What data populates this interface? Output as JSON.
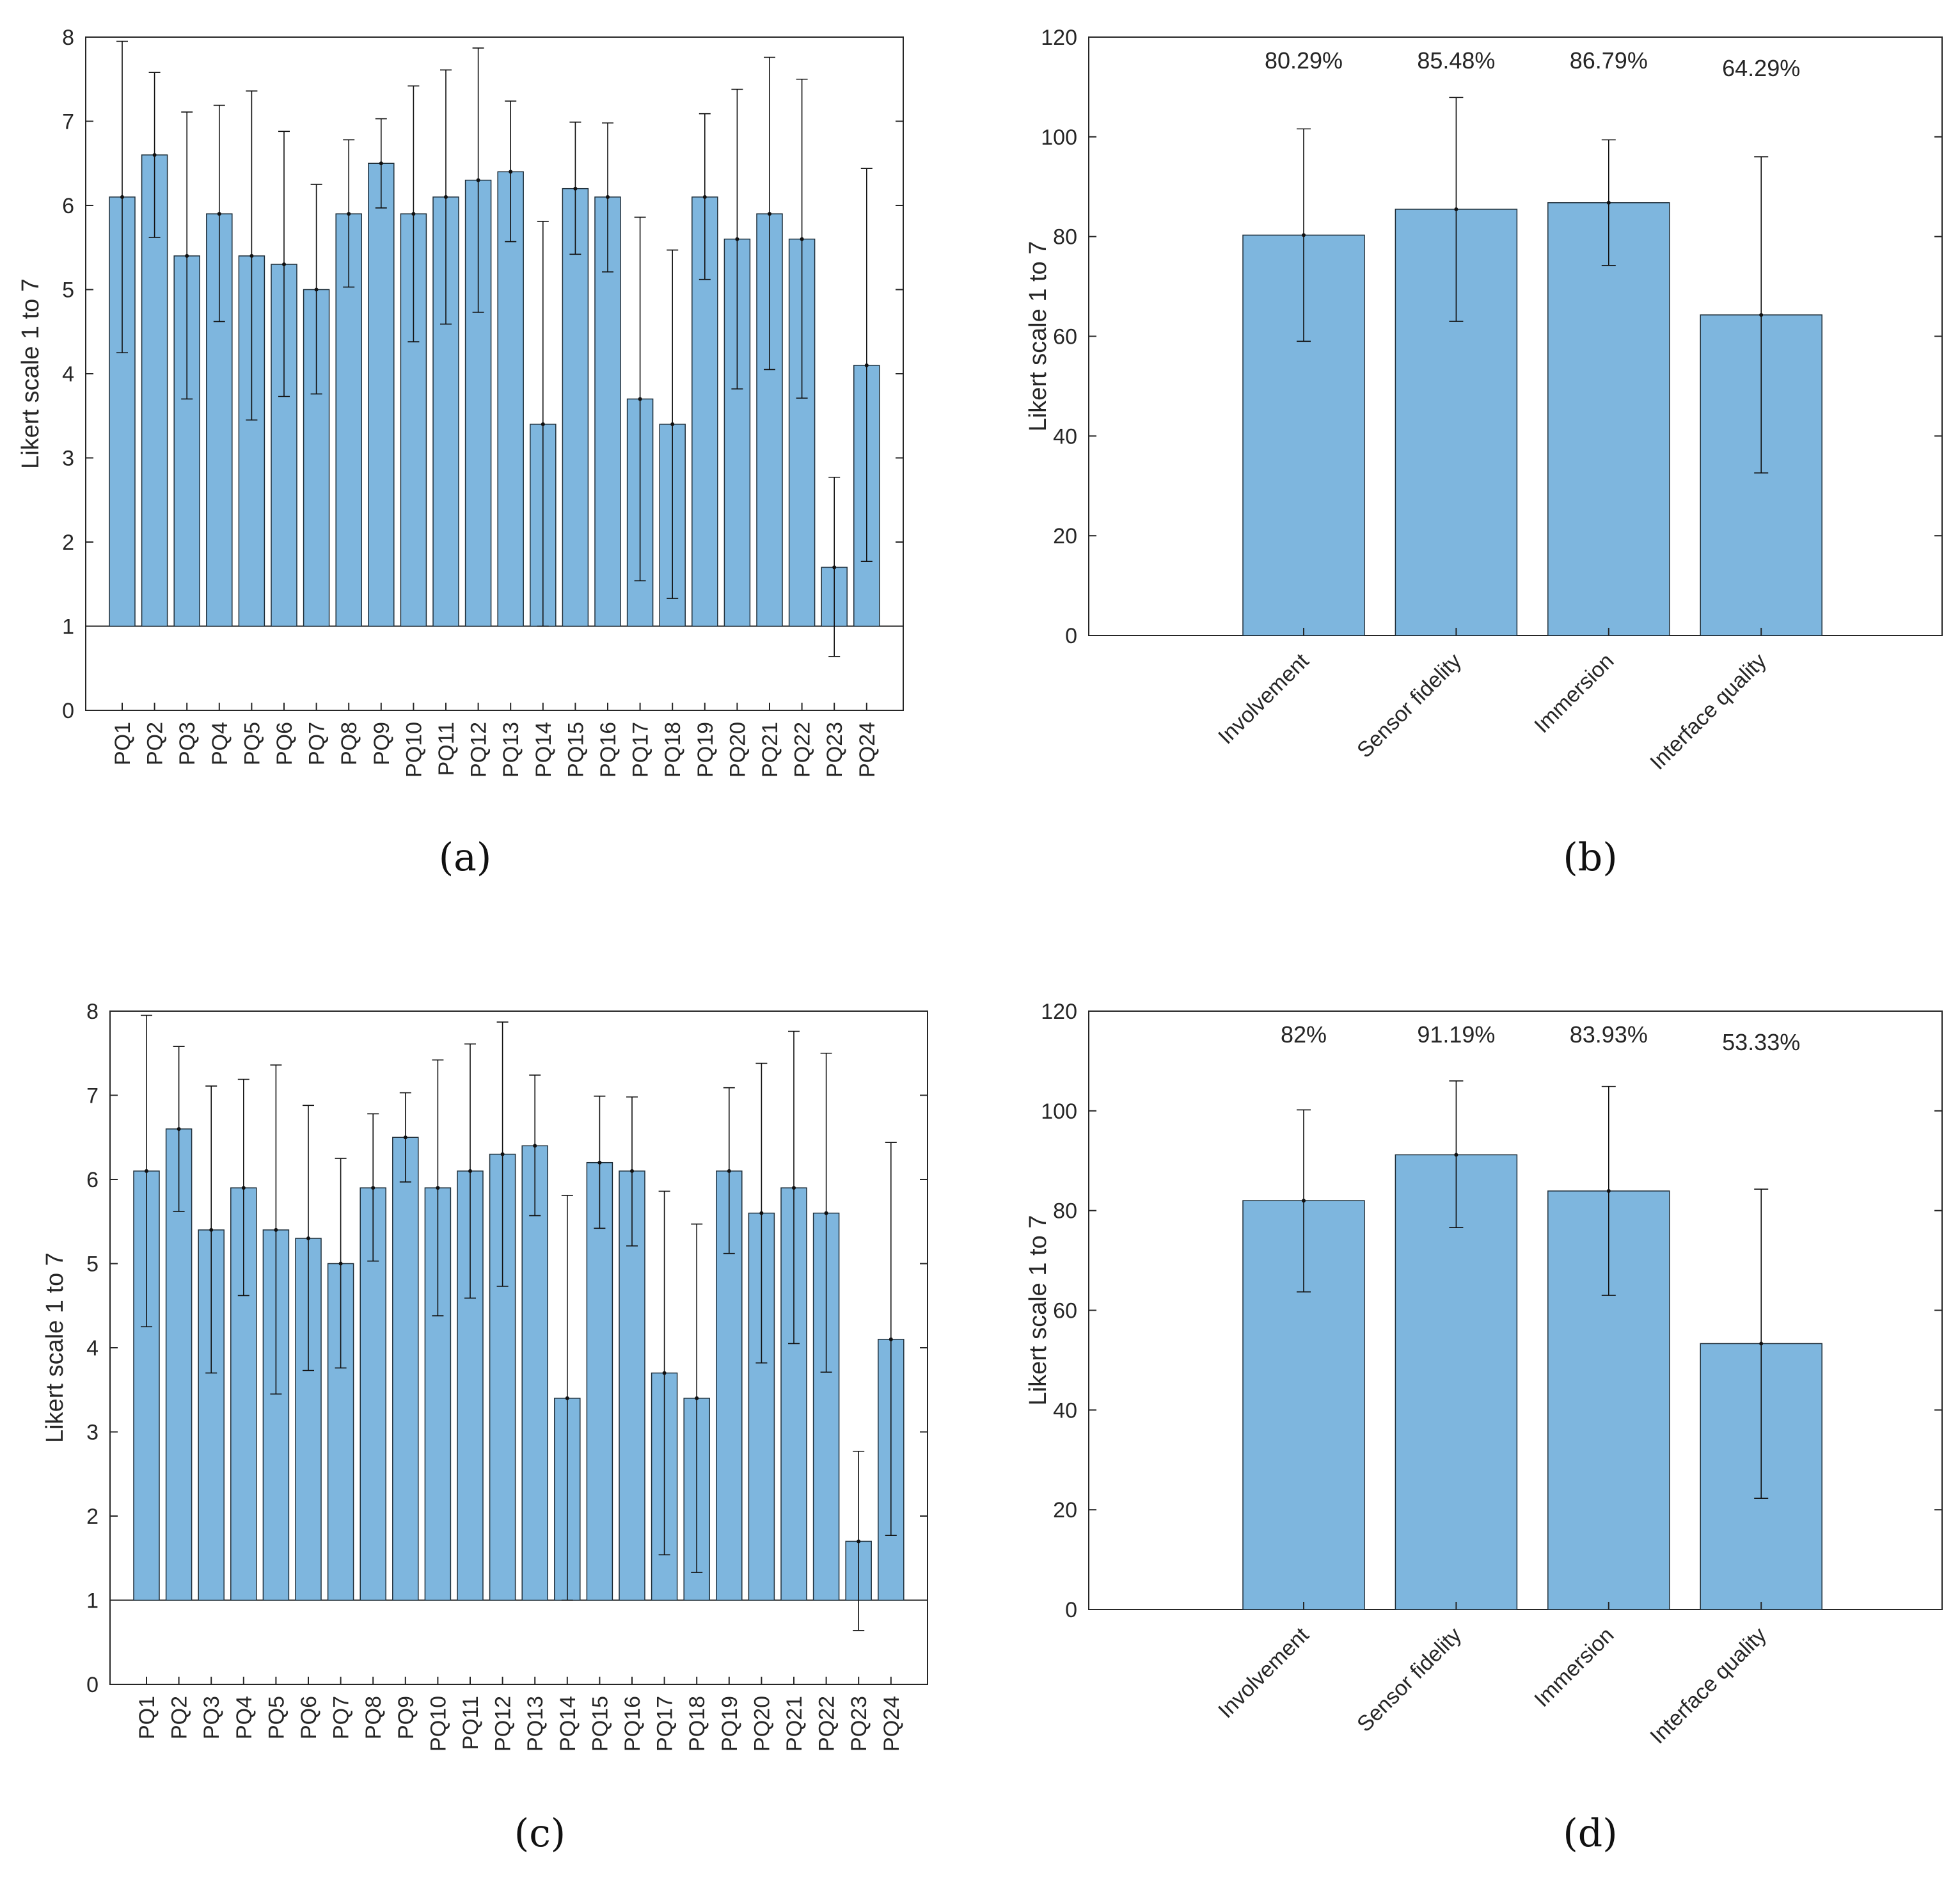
{
  "colors": {
    "bar": "#7eb6de",
    "bar_edge": "#1f2f3a",
    "axis": "#262626",
    "error": "#111111"
  },
  "captions": [
    "(a)",
    "(b)",
    "(c)",
    "(d)"
  ],
  "chart_data": [
    {
      "type": "bar",
      "ylabel": "Likert scale 1 to 7",
      "baseline": 1,
      "ylim": [
        0,
        8
      ],
      "yticks": [
        0,
        1,
        2,
        3,
        4,
        5,
        6,
        7,
        8
      ],
      "categories": [
        "PQ1",
        "PQ2",
        "PQ3",
        "PQ4",
        "PQ5",
        "PQ6",
        "PQ7",
        "PQ8",
        "PQ9",
        "PQ10",
        "PQ11",
        "PQ12",
        "PQ13",
        "PQ14",
        "PQ15",
        "PQ16",
        "PQ17",
        "PQ18",
        "PQ19",
        "PQ20",
        "PQ21",
        "PQ22",
        "PQ23",
        "PQ24"
      ],
      "values": [
        6.1,
        6.6,
        5.4,
        5.9,
        5.4,
        5.3,
        5.0,
        5.9,
        6.5,
        5.9,
        6.1,
        6.3,
        6.4,
        3.4,
        6.2,
        6.1,
        3.7,
        3.4,
        6.1,
        5.6,
        5.9,
        5.6,
        1.7,
        4.1
      ],
      "error_low": [
        4.25,
        5.62,
        3.7,
        4.62,
        3.45,
        3.73,
        3.76,
        5.03,
        5.97,
        4.38,
        4.59,
        4.73,
        5.57,
        1.0,
        5.42,
        5.21,
        1.54,
        1.33,
        5.12,
        3.82,
        4.05,
        3.71,
        0.64,
        1.77
      ],
      "error_high": [
        7.95,
        7.58,
        7.11,
        7.19,
        7.36,
        6.88,
        6.25,
        6.78,
        7.03,
        7.42,
        7.61,
        7.87,
        7.24,
        5.81,
        6.99,
        6.98,
        5.86,
        5.47,
        7.09,
        7.38,
        7.76,
        7.5,
        2.77,
        6.44
      ]
    },
    {
      "type": "bar",
      "ylabel": "Likert scale 1 to 7",
      "baseline": 0,
      "ylim": [
        0,
        120
      ],
      "yticks": [
        0,
        20,
        40,
        60,
        80,
        100,
        120
      ],
      "categories": [
        "Involvement",
        "Sensor fidelity",
        "Immersion",
        "Interface quality"
      ],
      "values": [
        80.29,
        85.48,
        86.79,
        64.29
      ],
      "error_low": [
        59.0,
        63.0,
        74.2,
        32.6
      ],
      "error_high": [
        101.6,
        107.9,
        99.4,
        96.0
      ],
      "annotations": [
        "80.29%",
        "85.48%",
        "86.79%",
        "64.29%"
      ]
    },
    {
      "type": "bar",
      "ylabel": "Likert scale 1 to 7",
      "baseline": 1,
      "ylim": [
        0,
        8
      ],
      "yticks": [
        0,
        1,
        2,
        3,
        4,
        5,
        6,
        7,
        8
      ],
      "categories": [
        "PQ1",
        "PQ2",
        "PQ3",
        "PQ4",
        "PQ5",
        "PQ6",
        "PQ7",
        "PQ8",
        "PQ9",
        "PQ10",
        "PQ11",
        "PQ12",
        "PQ13",
        "PQ14",
        "PQ15",
        "PQ16",
        "PQ17",
        "PQ18",
        "PQ19",
        "PQ20",
        "PQ21",
        "PQ22",
        "PQ23",
        "PQ24"
      ],
      "values": [
        6.1,
        6.6,
        5.4,
        5.9,
        5.4,
        5.3,
        5.0,
        5.9,
        6.5,
        5.9,
        6.1,
        6.3,
        6.4,
        3.4,
        6.2,
        6.1,
        3.7,
        3.4,
        6.1,
        5.6,
        5.9,
        5.6,
        1.7,
        4.1
      ],
      "error_low": [
        4.25,
        5.62,
        3.7,
        4.62,
        3.45,
        3.73,
        3.76,
        5.03,
        5.97,
        4.38,
        4.59,
        4.73,
        5.57,
        1.0,
        5.42,
        5.21,
        1.54,
        1.33,
        5.12,
        3.82,
        4.05,
        3.71,
        0.64,
        1.77
      ],
      "error_high": [
        7.95,
        7.58,
        7.11,
        7.19,
        7.36,
        6.88,
        6.25,
        6.78,
        7.03,
        7.42,
        7.61,
        7.87,
        7.24,
        5.81,
        6.99,
        6.98,
        5.86,
        5.47,
        7.09,
        7.38,
        7.76,
        7.5,
        2.77,
        6.44
      ]
    },
    {
      "type": "bar",
      "ylabel": "Likert scale 1 to 7",
      "baseline": 0,
      "ylim": [
        0,
        120
      ],
      "yticks": [
        0,
        20,
        40,
        60,
        80,
        100,
        120
      ],
      "categories": [
        "Involvement",
        "Sensor fidelity",
        "Immersion",
        "Interface quality"
      ],
      "values": [
        82.0,
        91.19,
        83.93,
        53.33
      ],
      "error_low": [
        63.7,
        76.6,
        63.0,
        22.3
      ],
      "error_high": [
        100.2,
        106.0,
        104.9,
        84.3
      ],
      "annotations": [
        "82%",
        "91.19%",
        "83.93%",
        "53.33%"
      ]
    }
  ]
}
